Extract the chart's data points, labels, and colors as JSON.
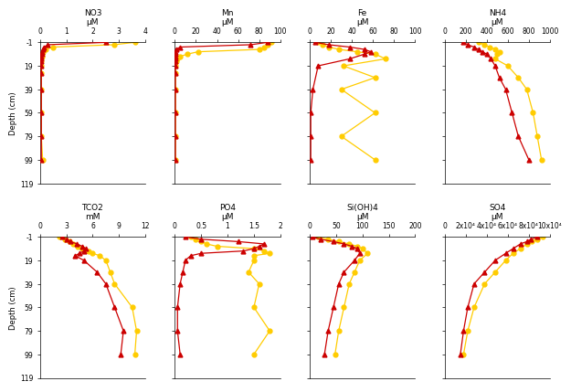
{
  "subplots": [
    {
      "title": "NO3",
      "unit": "μM",
      "xlim": [
        0,
        4
      ],
      "xticks": [
        0,
        1,
        2,
        3,
        4
      ],
      "row": 0,
      "col": 0,
      "red": {
        "depth": [
          -1,
          1,
          3,
          5,
          7,
          9,
          11,
          13,
          15,
          19,
          25,
          39,
          59,
          79,
          99
        ],
        "val": [
          2.5,
          0.3,
          0.15,
          0.1,
          0.08,
          0.06,
          0.05,
          0.05,
          0.05,
          0.05,
          0.05,
          0.05,
          0.05,
          0.05,
          0.05
        ]
      },
      "yellow": {
        "depth": [
          -1,
          1,
          3,
          5,
          7,
          9,
          11,
          13,
          15,
          19,
          25,
          39,
          59,
          79,
          99
        ],
        "val": [
          3.6,
          2.8,
          0.5,
          0.2,
          0.12,
          0.08,
          0.06,
          0.05,
          0.05,
          0.05,
          0.05,
          0.05,
          0.05,
          0.05,
          0.1
        ]
      }
    },
    {
      "title": "Mn",
      "unit": "μM",
      "xlim": [
        0,
        100
      ],
      "xticks": [
        0,
        20,
        40,
        60,
        80,
        100
      ],
      "row": 0,
      "col": 1,
      "red": {
        "depth": [
          -1,
          1,
          3,
          5,
          7,
          9,
          11,
          13,
          15,
          19,
          25,
          39,
          59,
          79,
          99
        ],
        "val": [
          88,
          72,
          5,
          1,
          0.5,
          0.5,
          0.5,
          0.5,
          0.5,
          0.5,
          0.5,
          0.5,
          0.5,
          0.5,
          0.5
        ]
      },
      "yellow": {
        "depth": [
          -1,
          1,
          3,
          5,
          7,
          9,
          11,
          13,
          15,
          19,
          25,
          39,
          59,
          79,
          99
        ],
        "val": [
          92,
          88,
          85,
          80,
          22,
          12,
          5,
          2,
          1,
          0.5,
          0.5,
          0.5,
          0.5,
          0.5,
          0.5
        ]
      }
    },
    {
      "title": "Fe",
      "unit": "μM",
      "xlim": [
        0,
        100
      ],
      "xticks": [
        0,
        20,
        40,
        60,
        80,
        100
      ],
      "row": 0,
      "col": 2,
      "red": {
        "depth": [
          -1,
          1,
          3,
          5,
          7,
          9,
          13,
          19,
          39,
          59,
          79,
          99
        ],
        "val": [
          5,
          18,
          38,
          52,
          58,
          52,
          38,
          8,
          3,
          1,
          1,
          1
        ]
      },
      "yellow": {
        "depth": [
          -1,
          1,
          3,
          5,
          7,
          9,
          13,
          19,
          29,
          39,
          59,
          79,
          99
        ],
        "val": [
          8,
          12,
          18,
          28,
          45,
          62,
          72,
          32,
          62,
          30,
          62,
          30,
          62
        ]
      }
    },
    {
      "title": "NH4",
      "unit": "μM",
      "xlim": [
        0,
        1000
      ],
      "xticks": [
        0,
        200,
        400,
        600,
        800,
        1000
      ],
      "row": 0,
      "col": 3,
      "red": {
        "depth": [
          -1,
          1,
          3,
          5,
          7,
          9,
          13,
          19,
          29,
          39,
          59,
          79,
          99
        ],
        "val": [
          180,
          220,
          280,
          320,
          360,
          400,
          440,
          480,
          520,
          580,
          640,
          700,
          800
        ]
      },
      "yellow": {
        "depth": [
          -1,
          1,
          3,
          5,
          7,
          9,
          13,
          19,
          29,
          39,
          59,
          79,
          99
        ],
        "val": [
          320,
          380,
          430,
          480,
          520,
          500,
          480,
          600,
          700,
          780,
          840,
          880,
          920
        ]
      }
    },
    {
      "title": "TCO2",
      "unit": "mM",
      "xlim": [
        0,
        12
      ],
      "xticks": [
        0,
        3,
        6,
        9,
        12
      ],
      "row": 1,
      "col": 0,
      "red": {
        "depth": [
          -1,
          1,
          3,
          5,
          7,
          9,
          11,
          13,
          15,
          19,
          29,
          39,
          59,
          79,
          99
        ],
        "val": [
          2.5,
          3.0,
          3.5,
          4.2,
          4.8,
          5.2,
          5.0,
          4.5,
          4.0,
          5.0,
          6.5,
          7.5,
          8.5,
          9.5,
          9.2
        ]
      },
      "yellow": {
        "depth": [
          -1,
          1,
          3,
          5,
          7,
          9,
          11,
          13,
          15,
          19,
          29,
          39,
          59,
          79,
          99
        ],
        "val": [
          2.2,
          2.8,
          3.3,
          3.8,
          4.3,
          4.8,
          5.5,
          6.0,
          6.8,
          7.5,
          8.0,
          8.5,
          10.5,
          11.0,
          10.8
        ]
      }
    },
    {
      "title": "PO4",
      "unit": "μM",
      "xlim": [
        0,
        2
      ],
      "xticks": [
        0,
        0.5,
        1,
        1.5,
        2
      ],
      "row": 1,
      "col": 1,
      "red": {
        "depth": [
          -1,
          1,
          3,
          5,
          7,
          9,
          11,
          13,
          15,
          19,
          29,
          39,
          59,
          79,
          99
        ],
        "val": [
          0.2,
          0.5,
          1.2,
          1.7,
          1.6,
          1.5,
          1.3,
          0.5,
          0.3,
          0.2,
          0.15,
          0.1,
          0.05,
          0.05,
          0.1
        ]
      },
      "yellow": {
        "depth": [
          -1,
          1,
          3,
          5,
          7,
          9,
          11,
          13,
          15,
          19,
          29,
          39,
          59,
          79,
          99
        ],
        "val": [
          0.3,
          0.4,
          0.5,
          0.6,
          0.8,
          1.5,
          1.7,
          1.8,
          1.5,
          1.5,
          1.4,
          1.6,
          1.5,
          1.8,
          1.5
        ]
      }
    },
    {
      "title": "Si(OH)4",
      "unit": "μM",
      "xlim": [
        0,
        200
      ],
      "xticks": [
        0,
        50,
        100,
        150,
        200
      ],
      "row": 1,
      "col": 2,
      "red": {
        "depth": [
          -1,
          1,
          3,
          5,
          7,
          9,
          13,
          19,
          29,
          39,
          59,
          79,
          99
        ],
        "val": [
          5,
          20,
          45,
          65,
          80,
          90,
          95,
          85,
          65,
          55,
          45,
          35,
          28
        ]
      },
      "yellow": {
        "depth": [
          -1,
          1,
          3,
          5,
          7,
          9,
          13,
          19,
          29,
          39,
          59,
          79,
          99
        ],
        "val": [
          15,
          35,
          55,
          75,
          90,
          100,
          110,
          95,
          85,
          75,
          65,
          55,
          48
        ]
      }
    },
    {
      "title": "SO4",
      "unit": "μM",
      "xlim": [
        0,
        100000
      ],
      "xticks_labels": [
        "0",
        "2x10⁴",
        "4x10⁴",
        "6x10⁴",
        "8x10⁴",
        "10x10⁴"
      ],
      "xticks_vals": [
        0,
        20000,
        40000,
        60000,
        80000,
        100000
      ],
      "row": 1,
      "col": 3,
      "red": {
        "depth": [
          -1,
          1,
          3,
          5,
          9,
          13,
          19,
          29,
          39,
          59,
          79,
          99
        ],
        "val": [
          88000,
          82000,
          78000,
          72000,
          65000,
          58000,
          48000,
          38000,
          28000,
          22000,
          18000,
          15000
        ]
      },
      "yellow": {
        "depth": [
          -1,
          1,
          3,
          5,
          9,
          13,
          19,
          29,
          39,
          59,
          79,
          99
        ],
        "val": [
          93000,
          88000,
          83000,
          78000,
          72000,
          65000,
          58000,
          48000,
          38000,
          28000,
          22000,
          18000
        ]
      }
    }
  ],
  "ylim_top": 119,
  "ylim_bottom": -1,
  "yticks": [
    -1,
    19,
    39,
    59,
    79,
    99,
    119
  ],
  "red_color": "#cc0000",
  "yellow_color": "#ffcc00",
  "marker_red": "^",
  "marker_yellow": "o",
  "markersize": 3.5,
  "linewidth": 0.9,
  "bg_color": "#f0f0f0"
}
